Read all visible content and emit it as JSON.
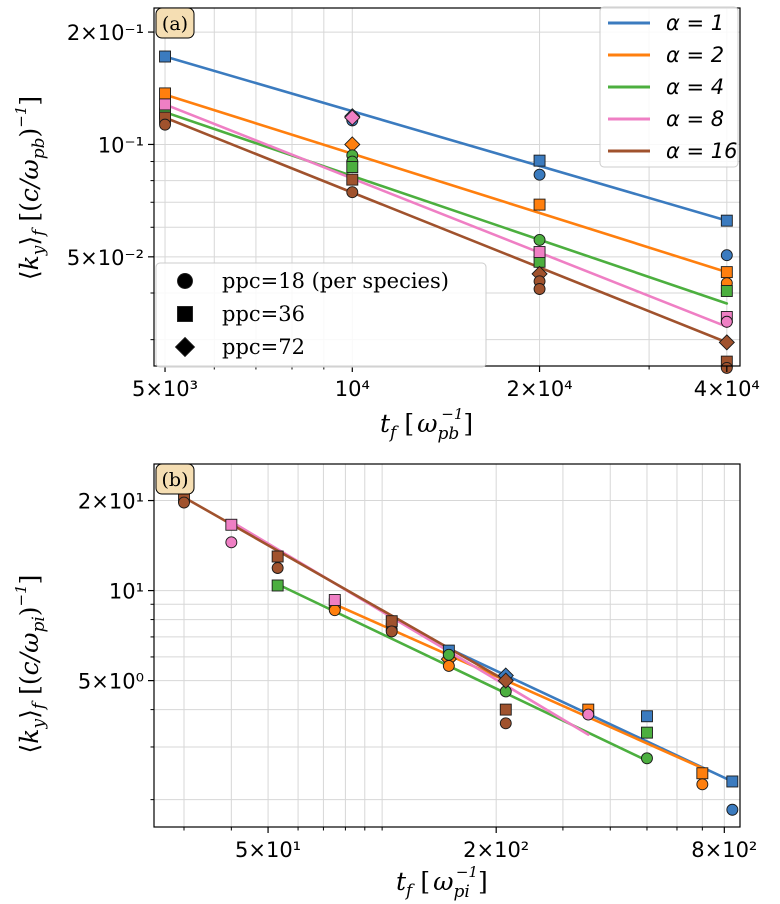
{
  "colors": {
    "alpha_1": "#3b7bbf",
    "alpha_2": "#ff7f0e",
    "alpha_4": "#4caf3f",
    "alpha_8": "#ef7fc4",
    "alpha_16": "#a0522d",
    "tag_fill": "#f5deb3"
  },
  "legend_alpha": {
    "title": "",
    "entries": [
      {
        "label": "α = 1",
        "color_key": "alpha_1"
      },
      {
        "label": "α = 2",
        "color_key": "alpha_2"
      },
      {
        "label": "α = 4",
        "color_key": "alpha_4"
      },
      {
        "label": "α = 8",
        "color_key": "alpha_8"
      },
      {
        "label": "α = 16",
        "color_key": "alpha_16"
      }
    ]
  },
  "legend_ppc": {
    "entries": [
      {
        "label": "ppc=18 (per species)",
        "marker": "circle"
      },
      {
        "label": "ppc=36",
        "marker": "square"
      },
      {
        "label": "ppc=72",
        "marker": "diamond"
      }
    ]
  },
  "chart_data": [
    {
      "panel": "(a)",
      "type": "scatter",
      "xscale": "log",
      "yscale": "log",
      "xlabel": "t_f  [ω_pb^-1]",
      "ylabel": "⟨k_y⟩_f  [(c/ω_pb)^-1]",
      "xlim": [
        4800,
        42000
      ],
      "ylim": [
        0.0255,
        0.232
      ],
      "xticks": [
        {
          "v": 5000,
          "label": "5×10³"
        },
        {
          "v": 10000,
          "label": "10⁴"
        },
        {
          "v": 20000,
          "label": "2×10⁴"
        },
        {
          "v": 40000,
          "label": "4×10⁴"
        }
      ],
      "yticks": [
        {
          "v": 0.05,
          "label": "5×10⁻²"
        },
        {
          "v": 0.1,
          "label": "10⁻¹"
        },
        {
          "v": 0.2,
          "label": "2×10⁻¹"
        }
      ],
      "xminor": [
        6000,
        7000,
        8000,
        9000,
        30000
      ],
      "yminor": [
        0.03,
        0.04,
        0.06,
        0.07,
        0.08,
        0.09
      ],
      "fits": [
        {
          "alpha": 1,
          "color_key": "alpha_1",
          "x": [
            5000,
            40000
          ],
          "y": [
            0.172,
            0.0625
          ]
        },
        {
          "alpha": 2,
          "color_key": "alpha_2",
          "x": [
            5000,
            40000
          ],
          "y": [
            0.136,
            0.0455
          ]
        },
        {
          "alpha": 4,
          "color_key": "alpha_4",
          "x": [
            5000,
            40000
          ],
          "y": [
            0.122,
            0.0375
          ]
        },
        {
          "alpha": 8,
          "color_key": "alpha_8",
          "x": [
            5000,
            40000
          ],
          "y": [
            0.128,
            0.0325
          ]
        },
        {
          "alpha": 16,
          "color_key": "alpha_16",
          "x": [
            5000,
            40000
          ],
          "y": [
            0.118,
            0.0295
          ]
        }
      ],
      "points": [
        {
          "x": 5000,
          "y": 0.172,
          "color_key": "alpha_1",
          "marker": "square"
        },
        {
          "x": 10000,
          "y": 0.116,
          "color_key": "alpha_1",
          "marker": "circle"
        },
        {
          "x": 10000,
          "y": 0.119,
          "color_key": "alpha_1",
          "marker": "diamond"
        },
        {
          "x": 20000,
          "y": 0.0905,
          "color_key": "alpha_1",
          "marker": "square"
        },
        {
          "x": 20000,
          "y": 0.083,
          "color_key": "alpha_1",
          "marker": "circle"
        },
        {
          "x": 40000,
          "y": 0.0625,
          "color_key": "alpha_1",
          "marker": "square"
        },
        {
          "x": 40000,
          "y": 0.0505,
          "color_key": "alpha_1",
          "marker": "circle"
        },
        {
          "x": 5000,
          "y": 0.137,
          "color_key": "alpha_2",
          "marker": "square"
        },
        {
          "x": 10000,
          "y": 0.1,
          "color_key": "alpha_2",
          "marker": "diamond"
        },
        {
          "x": 20000,
          "y": 0.069,
          "color_key": "alpha_2",
          "marker": "square"
        },
        {
          "x": 40000,
          "y": 0.0455,
          "color_key": "alpha_2",
          "marker": "square"
        },
        {
          "x": 40000,
          "y": 0.0425,
          "color_key": "alpha_2",
          "marker": "circle"
        },
        {
          "x": 5000,
          "y": 0.121,
          "color_key": "alpha_4",
          "marker": "square"
        },
        {
          "x": 10000,
          "y": 0.0935,
          "color_key": "alpha_4",
          "marker": "circle"
        },
        {
          "x": 10000,
          "y": 0.09,
          "color_key": "alpha_4",
          "marker": "circle"
        },
        {
          "x": 10000,
          "y": 0.087,
          "color_key": "alpha_4",
          "marker": "square"
        },
        {
          "x": 20000,
          "y": 0.0555,
          "color_key": "alpha_4",
          "marker": "circle"
        },
        {
          "x": 20000,
          "y": 0.0485,
          "color_key": "alpha_4",
          "marker": "square"
        },
        {
          "x": 40000,
          "y": 0.0405,
          "color_key": "alpha_4",
          "marker": "square"
        },
        {
          "x": 5000,
          "y": 0.128,
          "color_key": "alpha_8",
          "marker": "square"
        },
        {
          "x": 10000,
          "y": 0.118,
          "color_key": "alpha_8",
          "marker": "diamond"
        },
        {
          "x": 20000,
          "y": 0.0515,
          "color_key": "alpha_8",
          "marker": "square"
        },
        {
          "x": 40000,
          "y": 0.0345,
          "color_key": "alpha_8",
          "marker": "square"
        },
        {
          "x": 40000,
          "y": 0.0335,
          "color_key": "alpha_8",
          "marker": "circle"
        },
        {
          "x": 5000,
          "y": 0.118,
          "color_key": "alpha_16",
          "marker": "square"
        },
        {
          "x": 5000,
          "y": 0.113,
          "color_key": "alpha_16",
          "marker": "circle"
        },
        {
          "x": 10000,
          "y": 0.0805,
          "color_key": "alpha_16",
          "marker": "square"
        },
        {
          "x": 10000,
          "y": 0.0745,
          "color_key": "alpha_16",
          "marker": "circle"
        },
        {
          "x": 20000,
          "y": 0.045,
          "color_key": "alpha_16",
          "marker": "diamond"
        },
        {
          "x": 20000,
          "y": 0.043,
          "color_key": "alpha_16",
          "marker": "circle"
        },
        {
          "x": 20000,
          "y": 0.041,
          "color_key": "alpha_16",
          "marker": "circle"
        },
        {
          "x": 40000,
          "y": 0.0295,
          "color_key": "alpha_16",
          "marker": "diamond"
        },
        {
          "x": 40000,
          "y": 0.0262,
          "color_key": "alpha_16",
          "marker": "square"
        },
        {
          "x": 40000,
          "y": 0.0252,
          "color_key": "alpha_16",
          "marker": "circle"
        }
      ]
    },
    {
      "panel": "(b)",
      "type": "scatter",
      "xscale": "log",
      "yscale": "log",
      "xlabel": "t_f  [ω_pi^-1]",
      "ylabel": "⟨k_y⟩_f  [(c/ω_pi)^-1]",
      "xlim": [
        25,
        880
      ],
      "ylim": [
        1.62,
        26.5
      ],
      "xticks": [
        {
          "v": 50,
          "label": "5×10¹"
        },
        {
          "v": 200,
          "label": "2×10²"
        },
        {
          "v": 800,
          "label": "8×10²"
        }
      ],
      "yticks": [
        {
          "v": 5,
          "label": "5×10⁰"
        },
        {
          "v": 10,
          "label": "10¹"
        },
        {
          "v": 20,
          "label": "2×10¹"
        }
      ],
      "xminor": [
        30,
        40,
        60,
        70,
        80,
        90,
        100,
        300,
        400,
        500,
        600,
        700
      ],
      "yminor": [
        2,
        3,
        4,
        6,
        7,
        8,
        9
      ],
      "fits": [
        {
          "alpha": 1,
          "color_key": "alpha_1",
          "x": [
            150,
            840
          ],
          "y": [
            6.4,
            2.3
          ]
        },
        {
          "alpha": 2,
          "color_key": "alpha_2",
          "x": [
            75,
            700
          ],
          "y": [
            9.0,
            2.55
          ]
        },
        {
          "alpha": 4,
          "color_key": "alpha_4",
          "x": [
            53,
            500
          ],
          "y": [
            10.5,
            2.7
          ]
        },
        {
          "alpha": 8,
          "color_key": "alpha_8",
          "x": [
            40,
            350
          ],
          "y": [
            17.0,
            3.3
          ]
        },
        {
          "alpha": 16,
          "color_key": "alpha_16",
          "x": [
            30,
            212
          ],
          "y": [
            20.5,
            5.0
          ]
        }
      ],
      "points": [
        {
          "x": 150,
          "y": 6.3,
          "color_key": "alpha_1",
          "marker": "square"
        },
        {
          "x": 212,
          "y": 5.2,
          "color_key": "alpha_1",
          "marker": "diamond"
        },
        {
          "x": 500,
          "y": 3.8,
          "color_key": "alpha_1",
          "marker": "square"
        },
        {
          "x": 840,
          "y": 2.3,
          "color_key": "alpha_1",
          "marker": "square"
        },
        {
          "x": 840,
          "y": 1.85,
          "color_key": "alpha_1",
          "marker": "circle"
        },
        {
          "x": 75,
          "y": 9.0,
          "color_key": "alpha_2",
          "marker": "square"
        },
        {
          "x": 75,
          "y": 8.6,
          "color_key": "alpha_2",
          "marker": "circle"
        },
        {
          "x": 106,
          "y": 7.4,
          "color_key": "alpha_2",
          "marker": "circle"
        },
        {
          "x": 150,
          "y": 5.9,
          "color_key": "alpha_2",
          "marker": "diamond"
        },
        {
          "x": 150,
          "y": 5.6,
          "color_key": "alpha_2",
          "marker": "circle"
        },
        {
          "x": 350,
          "y": 4.0,
          "color_key": "alpha_2",
          "marker": "square"
        },
        {
          "x": 700,
          "y": 2.45,
          "color_key": "alpha_2",
          "marker": "square"
        },
        {
          "x": 700,
          "y": 2.25,
          "color_key": "alpha_2",
          "marker": "circle"
        },
        {
          "x": 53,
          "y": 10.4,
          "color_key": "alpha_4",
          "marker": "square"
        },
        {
          "x": 106,
          "y": 7.7,
          "color_key": "alpha_4",
          "marker": "circle"
        },
        {
          "x": 150,
          "y": 6.1,
          "color_key": "alpha_4",
          "marker": "circle"
        },
        {
          "x": 212,
          "y": 4.6,
          "color_key": "alpha_4",
          "marker": "circle"
        },
        {
          "x": 500,
          "y": 3.35,
          "color_key": "alpha_4",
          "marker": "square"
        },
        {
          "x": 500,
          "y": 2.75,
          "color_key": "alpha_4",
          "marker": "circle"
        },
        {
          "x": 40,
          "y": 16.6,
          "color_key": "alpha_8",
          "marker": "square"
        },
        {
          "x": 40,
          "y": 14.5,
          "color_key": "alpha_8",
          "marker": "circle"
        },
        {
          "x": 75,
          "y": 9.3,
          "color_key": "alpha_8",
          "marker": "square"
        },
        {
          "x": 350,
          "y": 3.85,
          "color_key": "alpha_8",
          "marker": "circle"
        },
        {
          "x": 30,
          "y": 20.5,
          "color_key": "alpha_16",
          "marker": "square"
        },
        {
          "x": 30,
          "y": 19.7,
          "color_key": "alpha_16",
          "marker": "circle"
        },
        {
          "x": 53,
          "y": 13.0,
          "color_key": "alpha_16",
          "marker": "square"
        },
        {
          "x": 53,
          "y": 11.9,
          "color_key": "alpha_16",
          "marker": "circle"
        },
        {
          "x": 106,
          "y": 7.9,
          "color_key": "alpha_16",
          "marker": "square"
        },
        {
          "x": 106,
          "y": 7.3,
          "color_key": "alpha_16",
          "marker": "circle"
        },
        {
          "x": 212,
          "y": 5.0,
          "color_key": "alpha_16",
          "marker": "diamond"
        },
        {
          "x": 212,
          "y": 4.0,
          "color_key": "alpha_16",
          "marker": "square"
        },
        {
          "x": 212,
          "y": 3.6,
          "color_key": "alpha_16",
          "marker": "circle"
        }
      ]
    }
  ]
}
